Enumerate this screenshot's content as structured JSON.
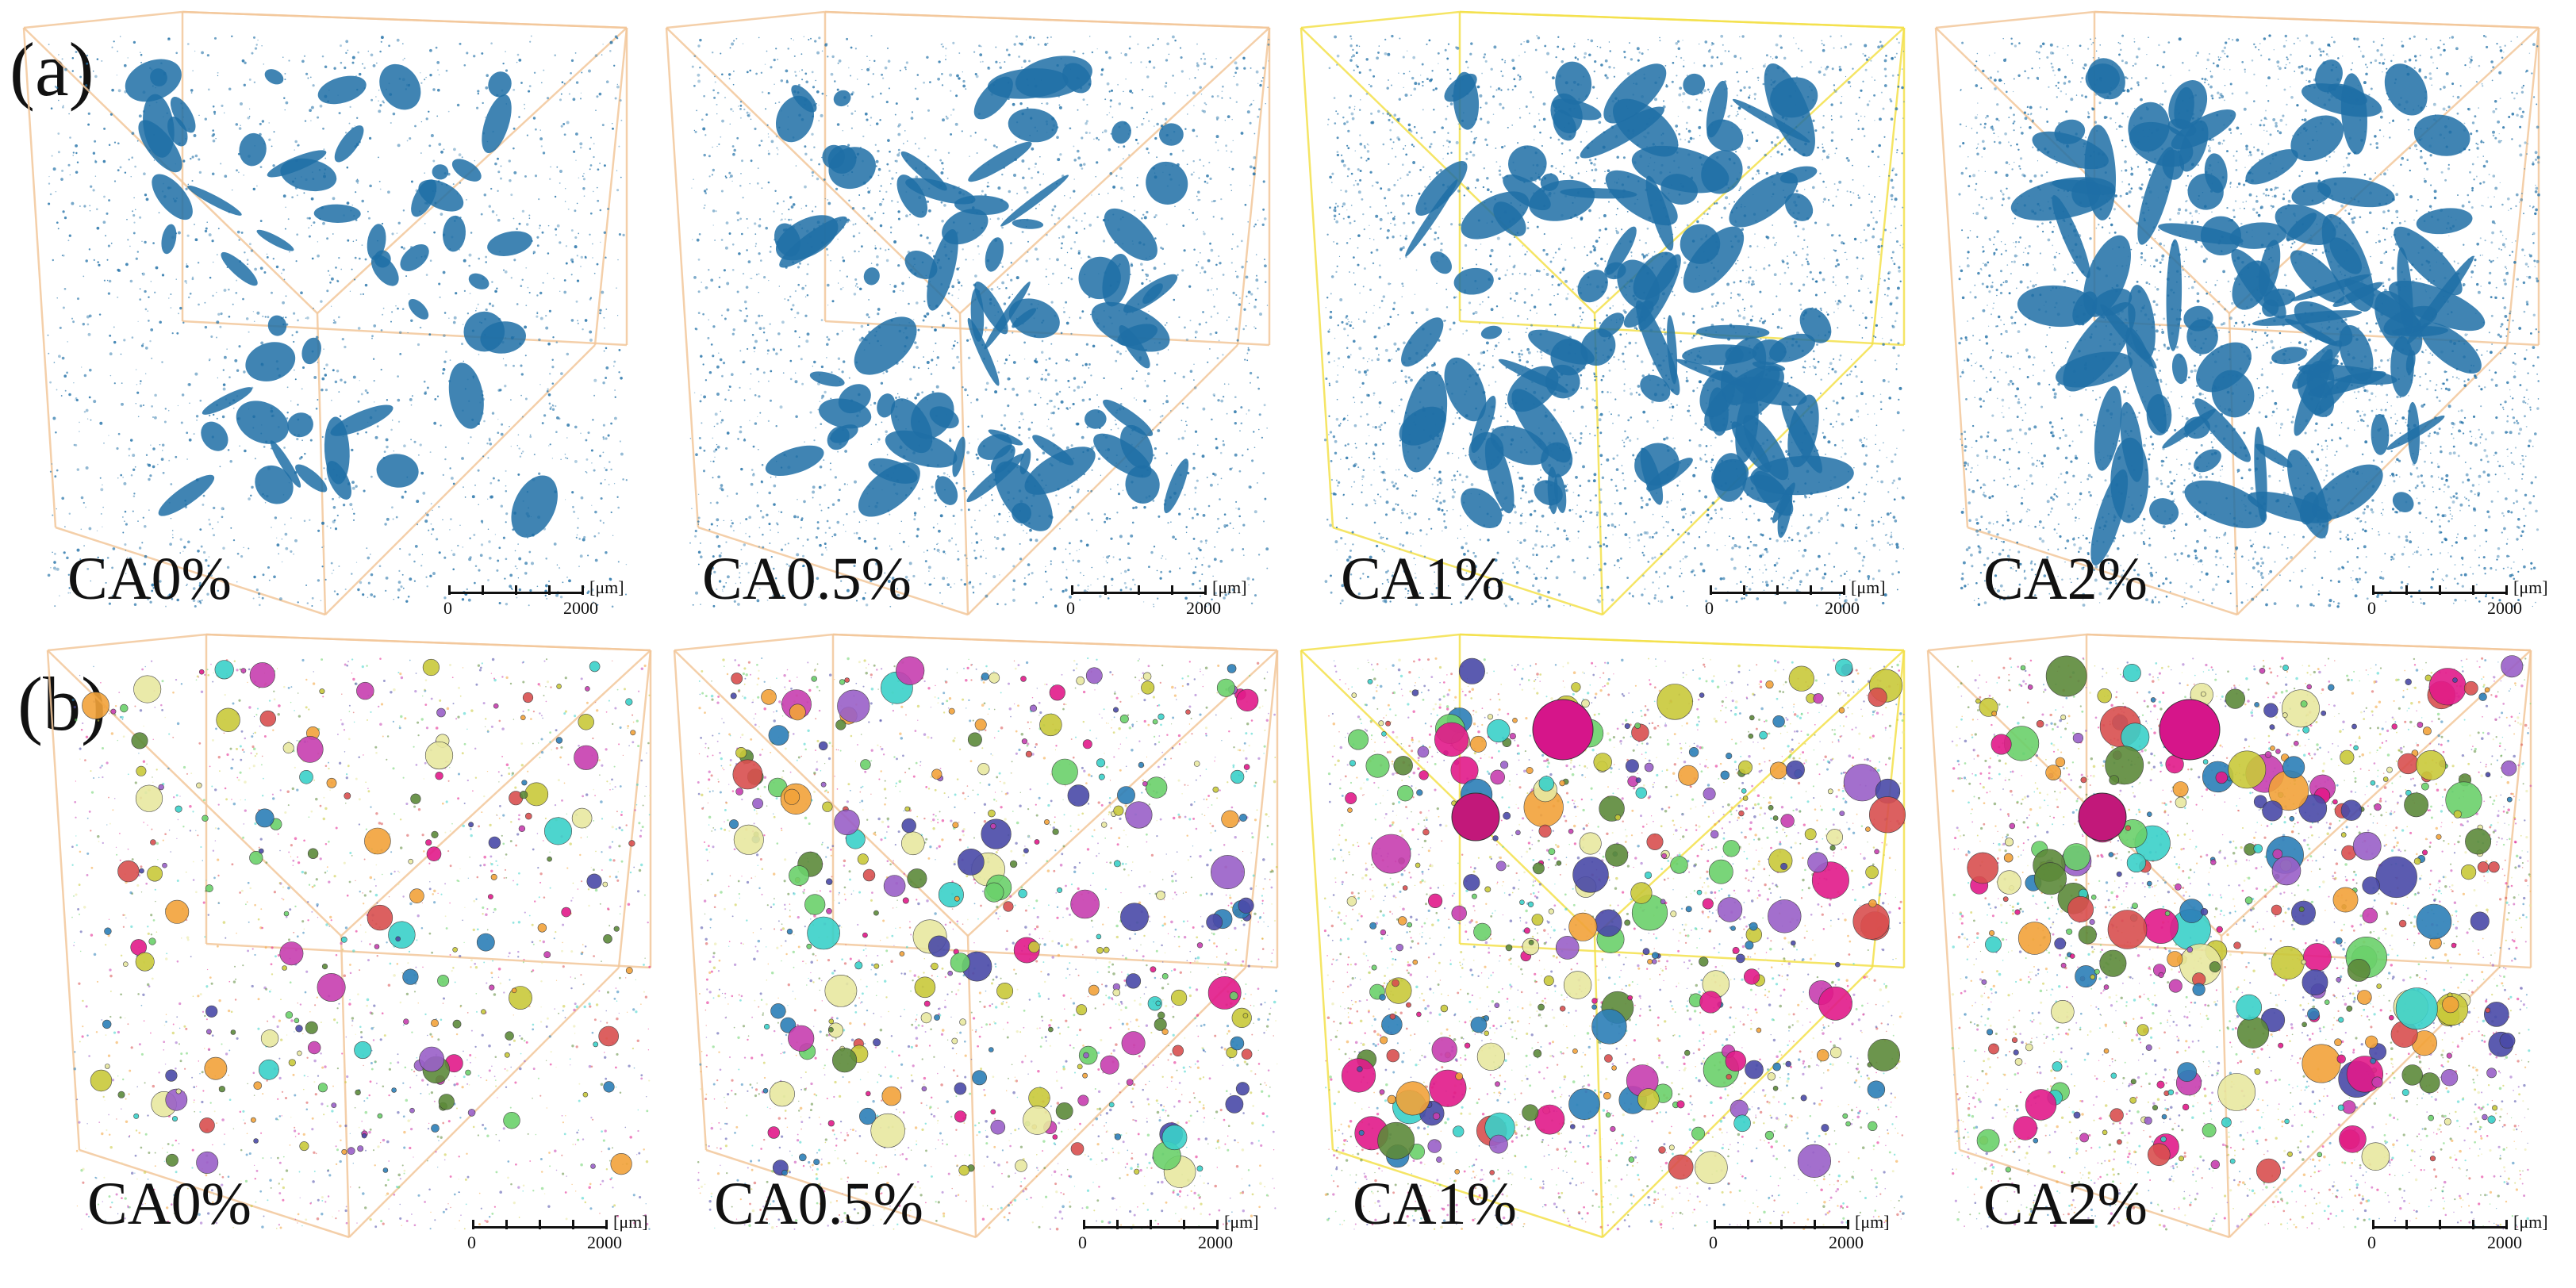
{
  "rows": [
    {
      "label": "(a)",
      "kind": "pore-network",
      "pore_color": "#1f6fa6",
      "panels": [
        {
          "label": "CA0%",
          "density": 0.35
        },
        {
          "label": "CA0.5%",
          "density": 0.6
        },
        {
          "label": "CA1%",
          "density": 0.85
        },
        {
          "label": "CA2%",
          "density": 0.95
        }
      ]
    },
    {
      "label": "(b)",
      "kind": "pore-spheres",
      "sphere_colors": [
        "#e21a8a",
        "#6bd16b",
        "#c9c93a",
        "#2c7fb8",
        "#9a60c8",
        "#d94f4f",
        "#3ad1c9",
        "#f2a33a",
        "#5d8a3a",
        "#c73fb0",
        "#4a4aa8",
        "#e8e8a0"
      ],
      "panels": [
        {
          "label": "CA0%",
          "density": 0.35
        },
        {
          "label": "CA0.5%",
          "density": 0.6
        },
        {
          "label": "CA1%",
          "density": 0.85
        },
        {
          "label": "CA2%",
          "density": 0.95
        }
      ]
    }
  ],
  "cube_edge_colors": [
    "#f2c79a",
    "#f2c79a",
    "#f3e14a",
    "#f2c79a"
  ],
  "scale_bar": {
    "unit": "[μm]",
    "start": "0",
    "end": "2000"
  }
}
